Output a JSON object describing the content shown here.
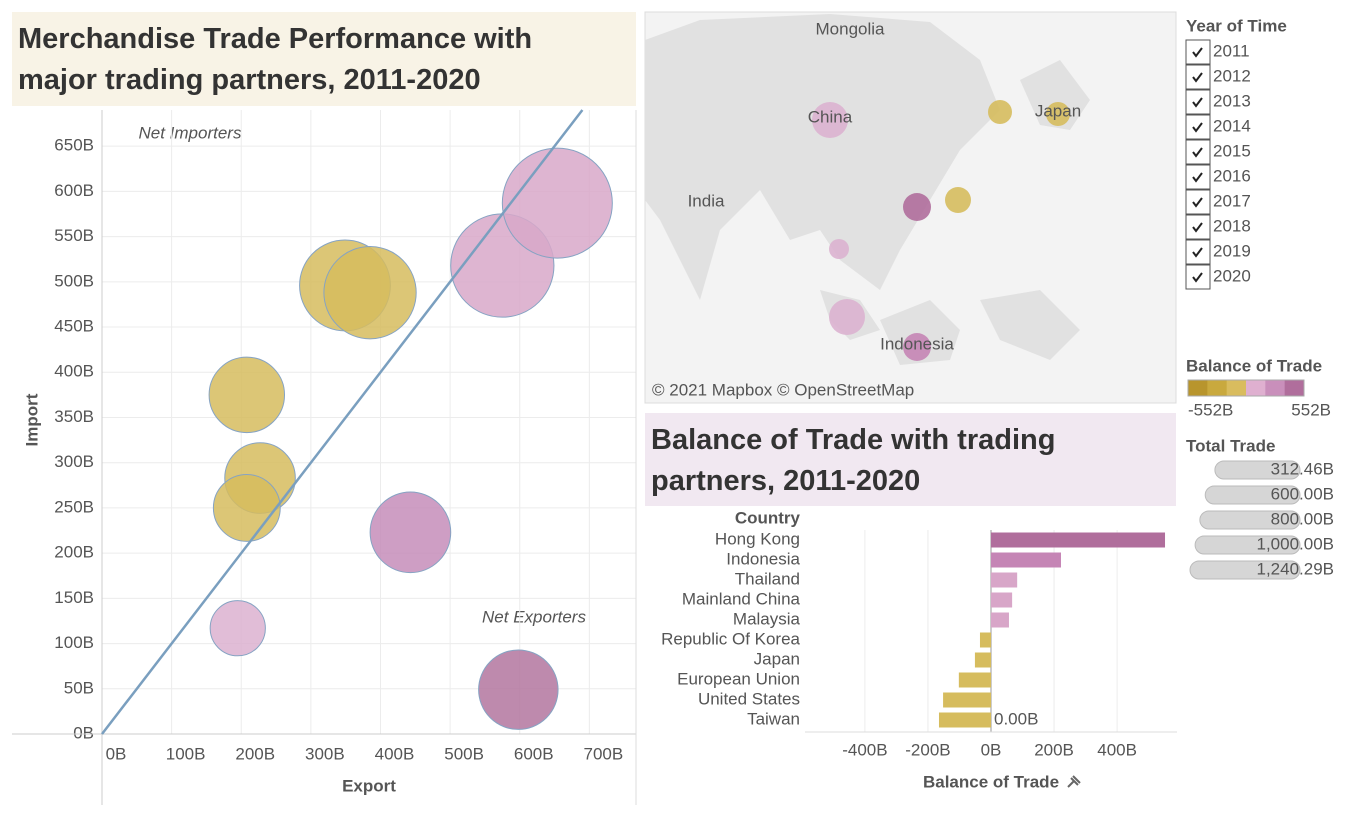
{
  "chart_data": [
    {
      "type": "bubble",
      "title": "Merchandise Trade Performance with major trading partners, 2011-2020",
      "x_label": "Export",
      "y_label": "Import",
      "annotations": [
        "Net Importers",
        "Net Exporters"
      ],
      "xlim": [
        0,
        767
      ],
      "ylim": [
        0,
        690
      ],
      "xticks": [
        {
          "value": 0,
          "label": "0B"
        },
        {
          "value": 100,
          "label": "100B"
        },
        {
          "value": 200,
          "label": "200B"
        },
        {
          "value": 300,
          "label": "300B"
        },
        {
          "value": 400,
          "label": "400B"
        },
        {
          "value": 500,
          "label": "500B"
        },
        {
          "value": 600,
          "label": "600B"
        },
        {
          "value": 700,
          "label": "700B"
        }
      ],
      "yticks": [
        {
          "value": 0,
          "label": "0B"
        },
        {
          "value": 50,
          "label": "50B"
        },
        {
          "value": 100,
          "label": "100B"
        },
        {
          "value": 150,
          "label": "150B"
        },
        {
          "value": 200,
          "label": "200B"
        },
        {
          "value": 250,
          "label": "250B"
        },
        {
          "value": 300,
          "label": "300B"
        },
        {
          "value": 350,
          "label": "350B"
        },
        {
          "value": 400,
          "label": "400B"
        },
        {
          "value": 450,
          "label": "450B"
        },
        {
          "value": 500,
          "label": "500B"
        },
        {
          "value": 550,
          "label": "550B"
        },
        {
          "value": 600,
          "label": "600B"
        },
        {
          "value": 650,
          "label": "650B"
        }
      ],
      "x": [
        349,
        385,
        575,
        654,
        208,
        227,
        208,
        443,
        195,
        598
      ],
      "y": [
        496,
        488,
        518,
        587,
        375,
        283,
        250,
        223,
        117,
        49
      ],
      "size": [
        845,
        873,
        1093,
        1240.29,
        583,
        510,
        458,
        666,
        312.46,
        647
      ],
      "colors": [
        "#d6bc5e",
        "#d6bc5e",
        "#d8a8c9",
        "#d8a8c9",
        "#d6bc5e",
        "#d6bc5e",
        "#d6bc5e",
        "#c68dba",
        "#dcb2d0",
        "#b3769f"
      ],
      "grid": true
    },
    {
      "type": "bar",
      "orientation": "horizontal",
      "title": "Balance of Trade with trading partners, 2011-2020",
      "category_header": "Country",
      "x_label": "Balance of Trade",
      "categories": [
        "Hong Kong",
        "Indonesia",
        "Thailand",
        "Mainland China",
        "Malaysia",
        "Republic Of Korea",
        "Japan",
        "European Union",
        "United States",
        "Taiwan"
      ],
      "values": [
        552,
        222,
        83,
        67,
        57,
        -35,
        -51,
        -102,
        -152,
        -165
      ],
      "colors": [
        "#b06e9c",
        "#c585b5",
        "#d8a6c8",
        "#d8a6c8",
        "#d8a6c8",
        "#d6bc5e",
        "#d6bc5e",
        "#d6bc5e",
        "#d6bc5e",
        "#d6bc5e"
      ],
      "xlim": [
        -590,
        590
      ],
      "xticks": [
        {
          "value": -400,
          "label": "-400B"
        },
        {
          "value": -200,
          "label": "-200B"
        },
        {
          "value": 0,
          "label": "0B"
        },
        {
          "value": 200,
          "label": "200B"
        },
        {
          "value": 400,
          "label": "400B"
        }
      ],
      "reference_label": {
        "value": 0,
        "label": "0.00B"
      },
      "grid": true
    }
  ],
  "map": {
    "labels": [
      "Mongolia",
      "China",
      "India",
      "Japan",
      "Indonesia"
    ],
    "attribution": "© 2021 Mapbox © OpenStreetMap"
  },
  "filters": {
    "title": "Year of Time",
    "options": [
      "2011",
      "2012",
      "2013",
      "2014",
      "2015",
      "2016",
      "2017",
      "2018",
      "2019",
      "2020"
    ]
  },
  "legends": {
    "color": {
      "title": "Balance of Trade",
      "colors": [
        "#b8952d",
        "#c9a93e",
        "#d9bc5e",
        "#dfb0d0",
        "#c98fbb",
        "#b06e9c"
      ],
      "min": {
        "value": -552,
        "label": "-552B"
      },
      "max": {
        "value": 552,
        "label": "552B"
      }
    },
    "size": {
      "title": "Total Trade",
      "items": [
        {
          "value": 312.46,
          "label": "312.46B"
        },
        {
          "value": 600,
          "label": "600.00B"
        },
        {
          "value": 800,
          "label": "800.00B"
        },
        {
          "value": 1000,
          "label": "1,000.00B"
        },
        {
          "value": 1240.29,
          "label": "1,240.29B"
        }
      ]
    }
  }
}
